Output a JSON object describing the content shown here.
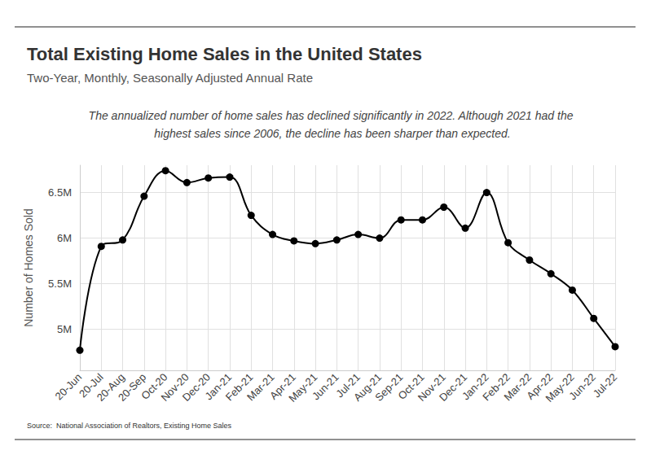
{
  "chart_data": {
    "type": "line",
    "title": "Total Existing Home Sales in the United States",
    "subtitle": "Two-Year, Monthly, Seasonally Adjusted Annual Rate",
    "annotation": "The annualized number of home sales has declined significantly in 2022. Although 2021 had the highest sales since 2006, the decline has been sharper than expected.",
    "source": "Source:  National Association of Realtors, Existing Home Sales",
    "y_label": "Number of Homes Sold",
    "categories": [
      "20-Jun",
      "20-Jul",
      "20-Aug",
      "20-Sep",
      "Oct-20",
      "Nov-20",
      "Dec-20",
      "Jan-21",
      "Feb-21",
      "Mar-21",
      "Apr-21",
      "May-21",
      "Jun-21",
      "Jul-21",
      "Aug-21",
      "Sep-21",
      "Oct-21",
      "Nov-21",
      "Dec-21",
      "Jan-22",
      "Feb-22",
      "Mar-22",
      "Apr-22",
      "May-22",
      "Jun-22",
      "Jul-22"
    ],
    "values": [
      4.77,
      5.91,
      5.98,
      6.46,
      6.74,
      6.61,
      6.66,
      6.67,
      6.25,
      6.04,
      5.97,
      5.94,
      5.98,
      6.04,
      6.0,
      6.2,
      6.2,
      6.34,
      6.11,
      6.5,
      5.95,
      5.76,
      5.61,
      5.43,
      5.12,
      4.81
    ],
    "color": "#000000",
    "marker": "circle",
    "line_style": "solid",
    "ylim": [
      4.55,
      6.8
    ],
    "yticks": [
      {
        "value": 5,
        "label": "5M"
      },
      {
        "value": 5.5,
        "label": "5.5M"
      },
      {
        "value": 6,
        "label": "6M"
      },
      {
        "value": 6.5,
        "label": "6.5M"
      }
    ],
    "grid": true
  }
}
